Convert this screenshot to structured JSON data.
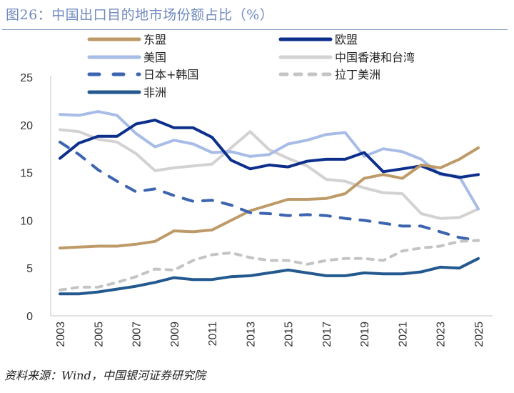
{
  "title": "图26：中国出口目的地市场份额占比（%）",
  "source": "资料来源：Wind，中国银河证券研究院",
  "chart_data": {
    "type": "line",
    "title": "图26：中国出口目的地市场份额占比（%）",
    "xlabel": "",
    "ylabel": "",
    "ylim": [
      0,
      25
    ],
    "yticks": [
      0,
      5,
      10,
      15,
      20,
      25
    ],
    "xtick_labels": [
      "2003",
      "2005",
      "2007",
      "2009",
      "2011",
      "2013",
      "2015",
      "2017",
      "2019",
      "2021",
      "2023",
      "2025"
    ],
    "grid": false,
    "legend_position": "top",
    "x": [
      2003,
      2004,
      2005,
      2006,
      2007,
      2008,
      2009,
      2010,
      2011,
      2012,
      2013,
      2014,
      2015,
      2016,
      2017,
      2018,
      2019,
      2020,
      2021,
      2022,
      2023,
      2024,
      2025
    ],
    "series": [
      {
        "name": "东盟",
        "color": "#bd9a68",
        "dash": "solid",
        "values": [
          7.1,
          7.2,
          7.3,
          7.3,
          7.5,
          7.8,
          8.9,
          8.8,
          9.0,
          10.0,
          11.0,
          11.6,
          12.2,
          12.2,
          12.3,
          12.8,
          14.4,
          14.8,
          14.4,
          15.8,
          15.5,
          16.4,
          17.6
        ]
      },
      {
        "name": "欧盟",
        "color": "#0d2f8c",
        "dash": "solid",
        "values": [
          16.5,
          18.1,
          18.8,
          18.8,
          20.1,
          20.5,
          19.7,
          19.7,
          18.7,
          16.3,
          15.4,
          15.8,
          15.6,
          16.2,
          16.4,
          16.4,
          17.1,
          15.1,
          15.4,
          15.7,
          14.9,
          14.5,
          14.8
        ]
      },
      {
        "name": "美国",
        "color": "#a7bce6",
        "dash": "solid",
        "values": [
          21.1,
          21.0,
          21.4,
          21.0,
          19.1,
          17.7,
          18.4,
          18.0,
          17.1,
          17.2,
          16.7,
          16.9,
          18.0,
          18.4,
          19.0,
          19.2,
          16.7,
          17.5,
          17.2,
          16.4,
          14.8,
          14.6,
          11.2
        ]
      },
      {
        "name": "中国香港和台湾",
        "color": "#d3d1d1",
        "dash": "solid",
        "values": [
          19.5,
          19.3,
          18.5,
          18.2,
          17.0,
          15.2,
          15.5,
          15.7,
          15.9,
          17.6,
          19.3,
          17.4,
          16.5,
          15.7,
          14.3,
          14.1,
          13.4,
          12.9,
          12.8,
          10.7,
          10.2,
          10.3,
          11.2
        ]
      },
      {
        "name": "日本+韩国",
        "color": "#3c64b0",
        "dash": "dashed",
        "values": [
          18.2,
          16.9,
          15.3,
          14.1,
          13.0,
          13.3,
          12.6,
          12.0,
          12.1,
          11.6,
          10.8,
          10.7,
          10.5,
          10.6,
          10.5,
          10.2,
          10.0,
          9.7,
          9.4,
          9.4,
          8.8,
          8.2,
          7.9
        ]
      },
      {
        "name": "拉丁美洲",
        "color": "#c4c4c4",
        "dash": "dashed",
        "values": [
          2.7,
          3.0,
          3.0,
          3.5,
          4.1,
          4.9,
          4.8,
          5.8,
          6.4,
          6.6,
          6.1,
          5.8,
          5.8,
          5.4,
          5.8,
          6.0,
          6.0,
          5.8,
          6.8,
          7.1,
          7.3,
          7.8,
          7.9
        ]
      },
      {
        "name": "非洲",
        "color": "#23598f",
        "dash": "solid",
        "values": [
          2.3,
          2.3,
          2.5,
          2.8,
          3.1,
          3.5,
          4.0,
          3.8,
          3.8,
          4.1,
          4.2,
          4.5,
          4.8,
          4.5,
          4.2,
          4.2,
          4.5,
          4.4,
          4.4,
          4.6,
          5.1,
          5.0,
          6.0
        ]
      }
    ]
  }
}
